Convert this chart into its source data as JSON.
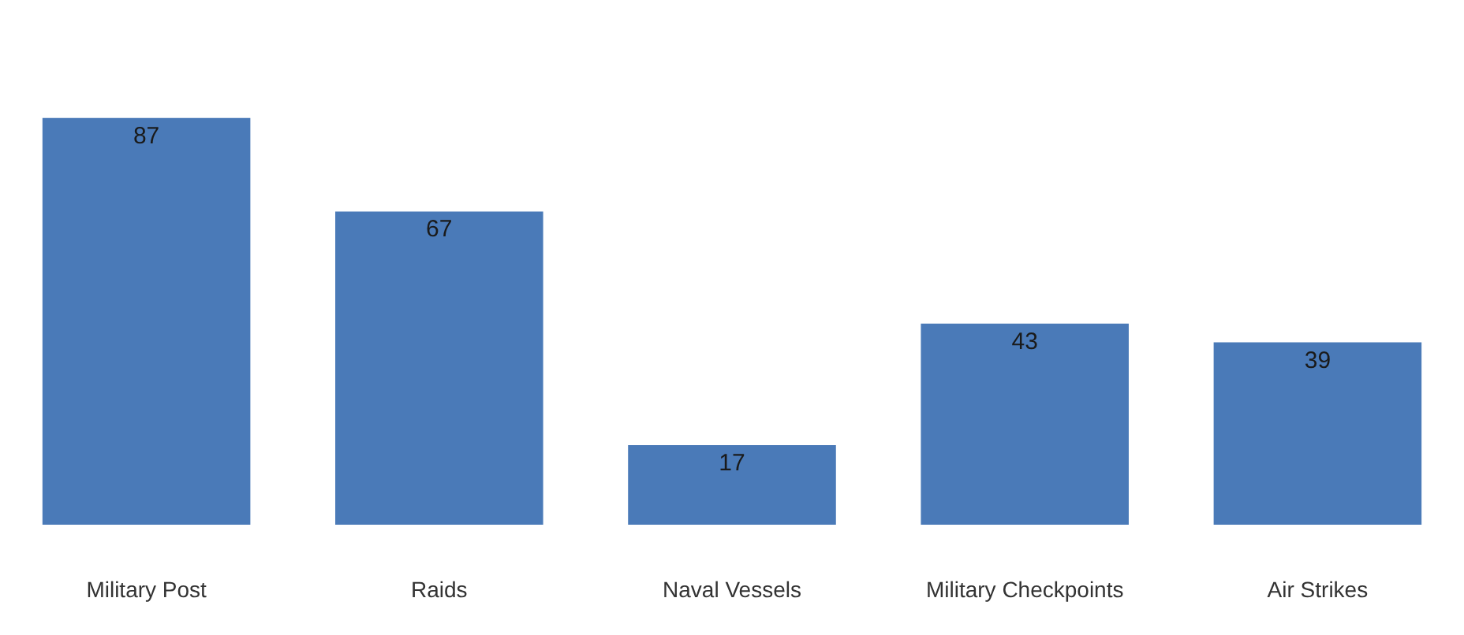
{
  "chart_data": {
    "type": "bar",
    "categories": [
      "Military Post",
      "Raids",
      "Naval Vessels",
      "Military Checkpoints",
      "Air Strikes"
    ],
    "values": [
      87,
      67,
      17,
      43,
      39
    ],
    "color": "#4a7ab8",
    "data_labels": true,
    "legend": false
  }
}
